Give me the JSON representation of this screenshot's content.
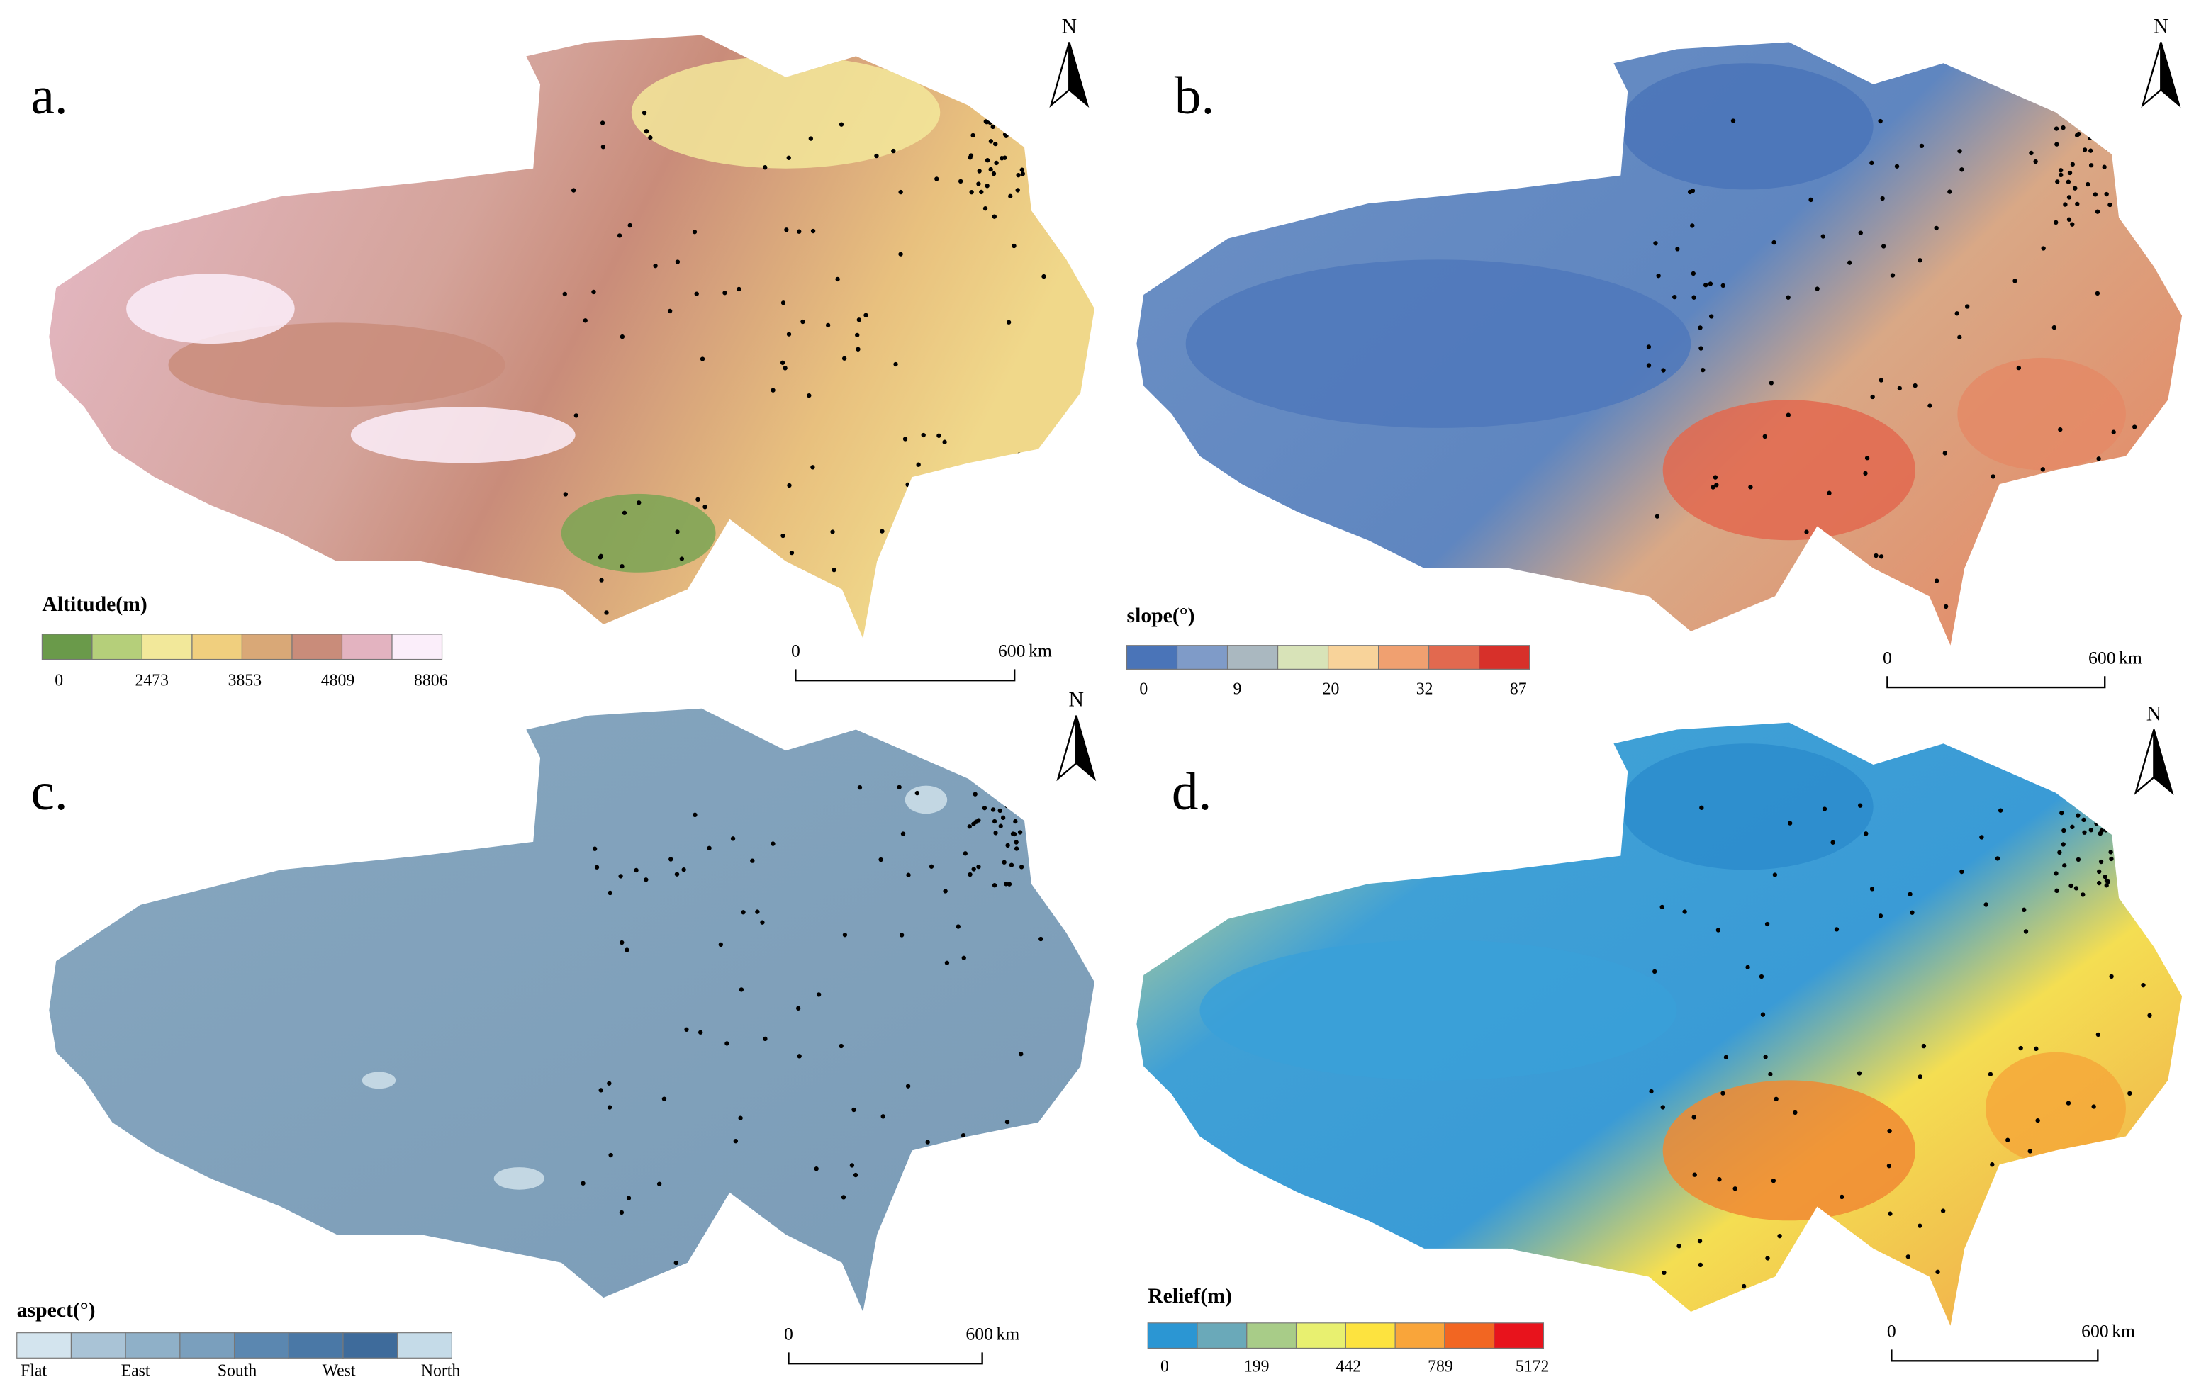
{
  "panels": [
    {
      "label": "a.",
      "north": "N",
      "legend": {
        "title": "Altitude(m)",
        "colors": [
          "#6a9a4a",
          "#b5cf7a",
          "#f2e89a",
          "#f0cf7e",
          "#d9a877",
          "#c98c7a",
          "#e3b3c0",
          "#fbeefa"
        ],
        "labels": [
          "0",
          "2473",
          "3853",
          "4809",
          "8806"
        ]
      },
      "scale_bar": {
        "start": "0",
        "end": "600",
        "unit": "km"
      }
    },
    {
      "label": "b.",
      "north": "N",
      "legend": {
        "title": "slope(°)",
        "colors": [
          "#4a74b8",
          "#7f9bc8",
          "#aab8c0",
          "#d8e3b8",
          "#f8d39a",
          "#f0a070",
          "#e2694f",
          "#d7302a"
        ],
        "labels": [
          "0",
          "9",
          "20",
          "32",
          "87"
        ]
      },
      "scale_bar": {
        "start": "0",
        "end": "600",
        "unit": "km"
      }
    },
    {
      "label": "c.",
      "north": "N",
      "legend": {
        "title": "aspect(°)",
        "colors": [
          "#d3e4ee",
          "#a9c3d6",
          "#8fb0c8",
          "#7a9fbd",
          "#5b87b0",
          "#4a78a6",
          "#3e6b9b",
          "#c5dbe8"
        ],
        "labels": [
          "Flat",
          "East",
          "South",
          "West",
          "North"
        ]
      },
      "scale_bar": {
        "start": "0",
        "end": "600",
        "unit": "km"
      }
    },
    {
      "label": "d.",
      "north": "N",
      "legend": {
        "title": "Relief(m)",
        "colors": [
          "#2b96d3",
          "#6aa9b9",
          "#a8cc88",
          "#e8f070",
          "#fde33f",
          "#f9a53a",
          "#f26622",
          "#e8131c"
        ],
        "labels": [
          "0",
          "199",
          "442",
          "789",
          "5172"
        ]
      },
      "scale_bar": {
        "start": "0",
        "end": "600",
        "unit": "km"
      }
    }
  ]
}
